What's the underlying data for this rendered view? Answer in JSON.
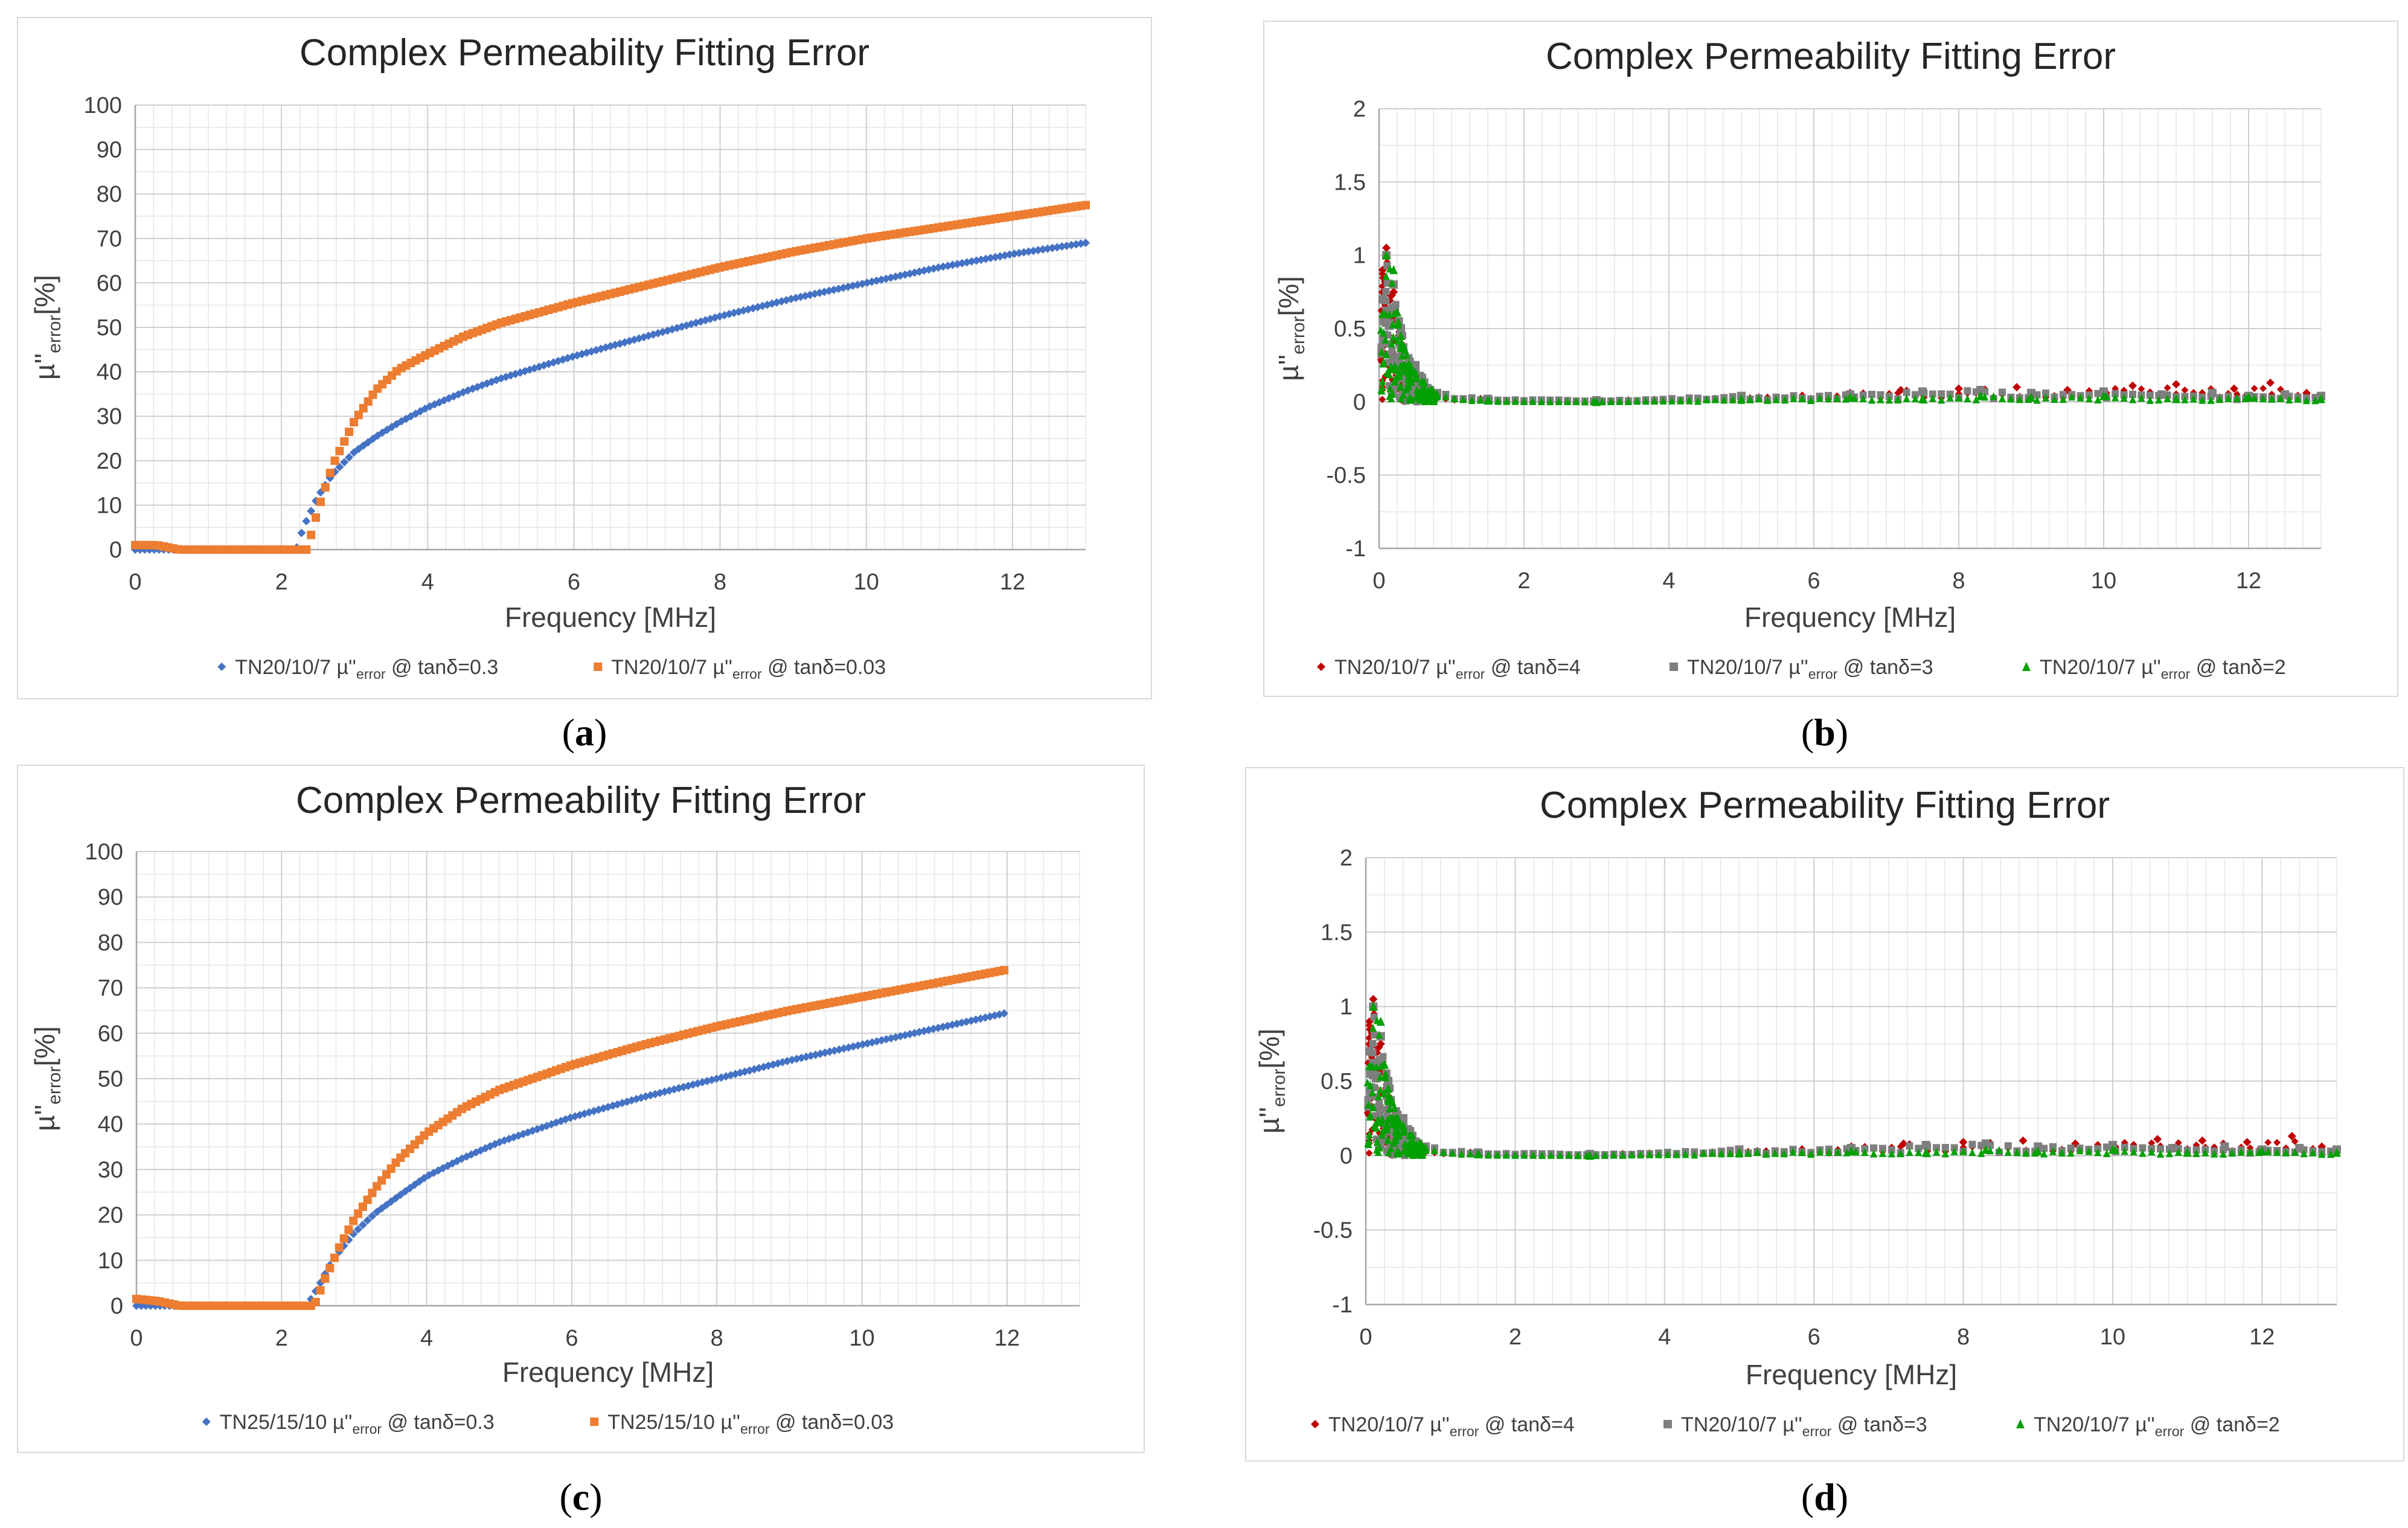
{
  "chart_data": [
    {
      "id": "a",
      "type": "scatter",
      "title": "Complex Permeability Fitting Error",
      "xlabel": "Frequency [MHz]",
      "ylabel_main": "µ''",
      "ylabel_sub": "error",
      "ylabel_tail": "[%]",
      "xlim": [
        0,
        13
      ],
      "ylim": [
        0,
        100
      ],
      "xticks": [
        0,
        2,
        4,
        6,
        8,
        10,
        12
      ],
      "yticks": [
        0,
        10,
        20,
        30,
        40,
        50,
        60,
        70,
        80,
        90,
        100
      ],
      "grid": true,
      "legend_position": "bottom",
      "series": [
        {
          "name_main": "TN20/10/7 µ''",
          "name_sub": "error",
          "name_tail": " @ tanδ=0.3",
          "color": "#4472C4",
          "marker": "diamond",
          "x": [
            0,
            2.2,
            2.3,
            2.5,
            2.7,
            3.0,
            3.3,
            3.6,
            4.0,
            4.5,
            5.0,
            6.0,
            7.0,
            8.0,
            9.0,
            10.0,
            11.0,
            12.0,
            13.0
          ],
          "y": [
            0,
            0,
            5,
            12,
            17,
            22,
            25.5,
            28.5,
            32,
            35.5,
            38.5,
            43.5,
            48,
            52.5,
            56.5,
            60,
            63.5,
            66.5,
            69
          ]
        },
        {
          "name_main": "TN20/10/7 µ''",
          "name_sub": "error",
          "name_tail": " @ tanδ=0.03",
          "color": "#ED7D31",
          "marker": "square",
          "x": [
            0,
            0.3,
            0.6,
            2.2,
            2.35,
            2.5,
            2.7,
            3.0,
            3.3,
            3.6,
            4.0,
            4.5,
            5.0,
            6.0,
            7.0,
            8.0,
            9.0,
            10.0,
            11.0,
            12.0,
            13.0
          ],
          "y": [
            1,
            1,
            0,
            0,
            0,
            9,
            19,
            29,
            36,
            40.5,
            44,
            48,
            51,
            55.5,
            59.5,
            63.5,
            67,
            70,
            72.5,
            75,
            77.5
          ]
        }
      ]
    },
    {
      "id": "b",
      "type": "scatter",
      "title": "Complex Permeability Fitting Error",
      "xlabel": "Frequency [MHz]",
      "ylabel_main": "µ''",
      "ylabel_sub": "error",
      "ylabel_tail": "[%]",
      "xlim": [
        0,
        13
      ],
      "ylim": [
        -1,
        2
      ],
      "xticks": [
        0,
        2,
        4,
        6,
        8,
        10,
        12
      ],
      "yticks": [
        -1,
        -0.5,
        0,
        0.5,
        1,
        1.5,
        2
      ],
      "grid": true,
      "legend_position": "bottom",
      "series": [
        {
          "name_main": "TN20/10/7 µ''",
          "name_sub": "error",
          "name_tail": " @ tanδ=4",
          "color": "#C00000",
          "marker": "diamond",
          "x": [
            0.05,
            0.1,
            0.2,
            0.3,
            0.5,
            0.8,
            1.5,
            3,
            5,
            6.5,
            7.2,
            8,
            8.8,
            9.5,
            10.4,
            11,
            11.8,
            12.3,
            12.8
          ],
          "y": [
            0.9,
            1.05,
            0.75,
            0.4,
            0.2,
            0.05,
            0.02,
            0.01,
            0.03,
            0.06,
            0.08,
            0.09,
            0.1,
            0.08,
            0.11,
            0.12,
            0.09,
            0.13,
            0.06
          ]
        },
        {
          "name_main": "TN20/10/7 µ''",
          "name_sub": "error",
          "name_tail": " @ tanδ=3",
          "color": "#7F7F7F",
          "marker": "square",
          "x": [
            0.05,
            0.1,
            0.2,
            0.3,
            0.5,
            0.8,
            1.5,
            3,
            5,
            6.5,
            7.5,
            8.3,
            9,
            10,
            10.8,
            11.5,
            12,
            12.5,
            13
          ],
          "y": [
            0.7,
            1.0,
            0.8,
            0.5,
            0.25,
            0.06,
            0.02,
            0.01,
            0.04,
            0.05,
            0.07,
            0.08,
            0.06,
            0.07,
            0.05,
            0.06,
            0.04,
            0.05,
            0.04
          ]
        },
        {
          "name_main": "TN20/10/7 µ''",
          "name_sub": "error",
          "name_tail": " @ tanδ=2",
          "color": "#00A000",
          "marker": "triangle",
          "x": [
            0.05,
            0.1,
            0.2,
            0.3,
            0.5,
            0.8,
            1.5,
            3,
            5,
            6.5,
            7.5,
            8.3,
            9,
            10,
            11,
            12,
            13
          ],
          "y": [
            0.6,
            1.0,
            0.9,
            0.45,
            0.2,
            0.05,
            0.01,
            0.0,
            0.02,
            0.03,
            0.02,
            0.04,
            0.03,
            0.04,
            0.02,
            0.03,
            0.02
          ]
        }
      ]
    },
    {
      "id": "c",
      "type": "scatter",
      "title": "Complex Permeability Fitting Error",
      "xlabel": "Frequency [MHz]",
      "ylabel_main": "µ''",
      "ylabel_sub": "error",
      "ylabel_tail": "[%]",
      "xlim": [
        0,
        13
      ],
      "ylim": [
        0,
        100
      ],
      "xticks": [
        0,
        2,
        4,
        6,
        8,
        10,
        12
      ],
      "yticks": [
        0,
        10,
        20,
        30,
        40,
        50,
        60,
        70,
        80,
        90,
        100
      ],
      "grid": true,
      "legend_position": "bottom",
      "series": [
        {
          "name_main": "TN25/15/10 µ''",
          "name_sub": "error",
          "name_tail": " @ tanδ=0.3",
          "color": "#4472C4",
          "marker": "diamond",
          "x": [
            0,
            2.35,
            2.5,
            2.7,
            3.0,
            3.3,
            3.6,
            4.0,
            4.5,
            5.0,
            6.0,
            7.0,
            8.0,
            9.0,
            10.0,
            11.0,
            12.0
          ],
          "y": [
            0,
            0,
            4,
            10,
            16,
            20.5,
            24,
            28.5,
            32.5,
            36,
            41.5,
            46,
            50,
            54,
            57.5,
            61,
            64.5
          ]
        },
        {
          "name_main": "TN25/15/10 µ''",
          "name_sub": "error",
          "name_tail": " @ tanδ=0.03",
          "color": "#ED7D31",
          "marker": "square",
          "x": [
            0,
            0.3,
            0.6,
            2.45,
            2.6,
            2.8,
            3.0,
            3.3,
            3.6,
            4.0,
            4.5,
            5.0,
            6.0,
            7.0,
            8.0,
            9.0,
            10.0,
            11.0,
            12.0
          ],
          "y": [
            1.5,
            1,
            0,
            0,
            6,
            13,
            19,
            26,
            32,
            38,
            43.5,
            47.5,
            53,
            57.5,
            61.5,
            65,
            68,
            71,
            74
          ]
        }
      ]
    },
    {
      "id": "d",
      "type": "scatter",
      "title": "Complex Permeability Fitting Error",
      "xlabel": "Frequency [MHz]",
      "ylabel_main": "µ''",
      "ylabel_sub": "error",
      "ylabel_tail": "[%]",
      "xlim": [
        0,
        13
      ],
      "ylim": [
        -1,
        2
      ],
      "xticks": [
        0,
        2,
        4,
        6,
        8,
        10,
        12
      ],
      "yticks": [
        -1,
        -0.5,
        0,
        0.5,
        1,
        1.5,
        2
      ],
      "grid": true,
      "legend_position": "bottom",
      "series": [
        {
          "name_main": "TN20/10/7 µ''",
          "name_sub": "error",
          "name_tail": " @ tanδ=4",
          "color": "#C00000",
          "marker": "diamond",
          "x": [
            0.05,
            0.1,
            0.2,
            0.3,
            0.5,
            0.8,
            1.5,
            3,
            5,
            6.5,
            7.2,
            8,
            8.8,
            9.5,
            10.6,
            11.2,
            11.8,
            12.4,
            12.8
          ],
          "y": [
            0.9,
            1.05,
            0.75,
            0.4,
            0.2,
            0.05,
            0.02,
            0.01,
            0.03,
            0.06,
            0.08,
            0.09,
            0.1,
            0.08,
            0.11,
            0.1,
            0.09,
            0.13,
            0.06
          ]
        },
        {
          "name_main": "TN20/10/7 µ''",
          "name_sub": "error",
          "name_tail": " @ tanδ=3",
          "color": "#7F7F7F",
          "marker": "square",
          "x": [
            0.05,
            0.1,
            0.2,
            0.3,
            0.5,
            0.8,
            1.5,
            3,
            5,
            6.5,
            7.5,
            8.3,
            9,
            10,
            10.8,
            11.5,
            12,
            12.5,
            13
          ],
          "y": [
            0.7,
            1.0,
            0.8,
            0.5,
            0.25,
            0.06,
            0.02,
            0.01,
            0.04,
            0.05,
            0.07,
            0.08,
            0.06,
            0.07,
            0.05,
            0.06,
            0.04,
            0.05,
            0.04
          ]
        },
        {
          "name_main": "TN20/10/7 µ''",
          "name_sub": "error",
          "name_tail": " @ tanδ=2",
          "color": "#00A000",
          "marker": "triangle",
          "x": [
            0.05,
            0.1,
            0.2,
            0.3,
            0.5,
            0.8,
            1.5,
            3,
            5,
            6.5,
            7.5,
            8.3,
            9,
            10,
            11,
            12,
            13
          ],
          "y": [
            0.6,
            1.0,
            0.9,
            0.45,
            0.2,
            0.05,
            0.01,
            0.0,
            0.02,
            0.03,
            0.02,
            0.04,
            0.03,
            0.04,
            0.02,
            0.03,
            0.02
          ]
        }
      ]
    }
  ],
  "captions": [
    "a",
    "b",
    "c",
    "d"
  ]
}
